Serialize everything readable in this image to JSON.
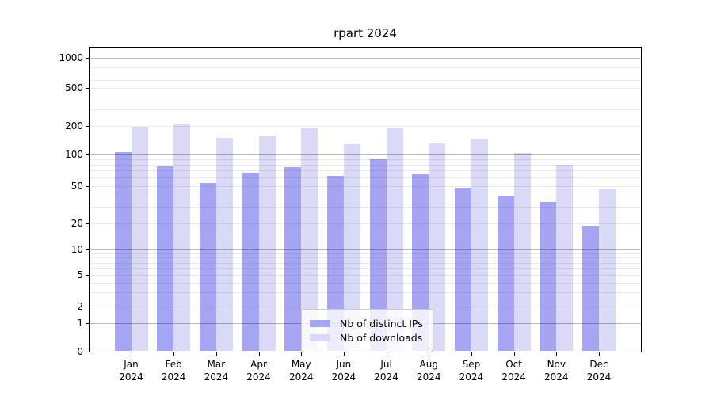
{
  "chart_data": {
    "type": "bar",
    "title": "rpart 2024",
    "categories": [
      "Jan",
      "Feb",
      "Mar",
      "Apr",
      "May",
      "Jun",
      "Jul",
      "Aug",
      "Sep",
      "Oct",
      "Nov",
      "Dec"
    ],
    "year_label": "2024",
    "series": [
      {
        "name": "Nb of distinct IPs",
        "color": "#a5a5f3",
        "values": [
          105,
          77,
          54,
          67,
          76,
          62,
          89,
          65,
          48,
          39,
          34,
          19
        ]
      },
      {
        "name": "Nb of downloads",
        "color": "#dadaf8",
        "values": [
          197,
          207,
          149,
          154,
          190,
          129,
          190,
          130,
          143,
          104,
          80,
          46
        ]
      }
    ],
    "yticks": [
      0,
      1,
      2,
      5,
      10,
      20,
      50,
      100,
      200,
      500,
      1000
    ],
    "ytick_labels": [
      "0",
      "1",
      "2",
      "5",
      "10",
      "20",
      "50",
      "100",
      "200",
      "500",
      "1000"
    ],
    "ylim": [
      0,
      1160
    ],
    "yscale": "asinh",
    "grid": "on",
    "legend_position": "lower center"
  },
  "colors": {
    "major_grid": "rgba(0,0,0,0.28)",
    "minor_grid": "rgba(0,0,0,0.08)",
    "spine": "#000000"
  }
}
